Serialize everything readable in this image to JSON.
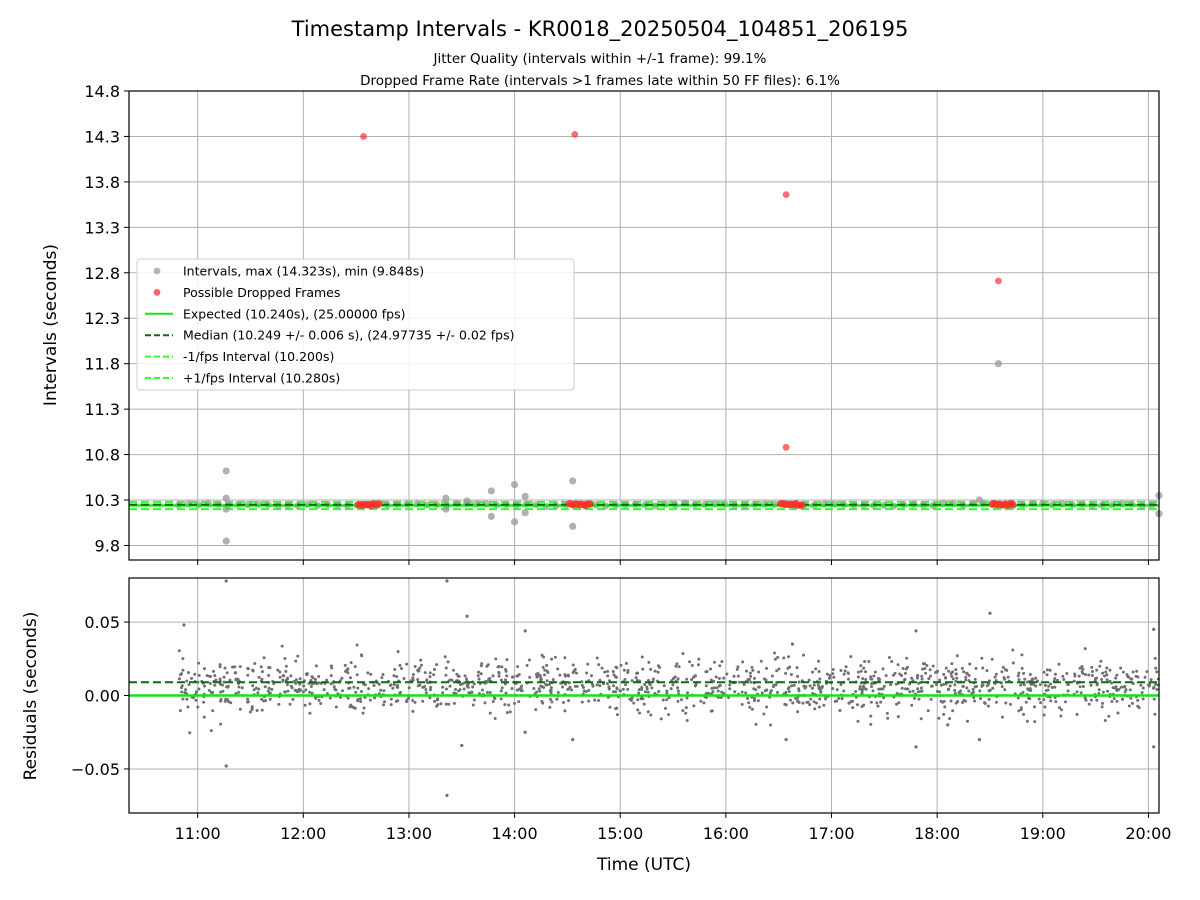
{
  "title": "Timestamp Intervals - KR0018_20250504_104851_206195",
  "subtitle_1": "Jitter Quality (intervals within +/-1 frame): 99.1%",
  "subtitle_2": "Dropped Frame Rate (intervals >1 frames late within 50 FF files): 6.1%",
  "colors": {
    "interval": "#9e9e9e",
    "dropped": "#ff3030",
    "expected": "#18e018",
    "median": "#0a6b0a",
    "fps_band": "#30ff30",
    "residual": "#707070",
    "grid": "#b0b0b0"
  },
  "chart_data": [
    {
      "type": "scatter",
      "panel": "top",
      "xlabel": "",
      "ylabel": "Intervals (seconds)",
      "x_unit": "hours UTC",
      "xlim": [
        10.35,
        20.1
      ],
      "ylim": [
        9.64,
        14.8
      ],
      "y_ticks": [
        "9.8",
        "10.3",
        "10.8",
        "11.3",
        "11.8",
        "12.3",
        "12.8",
        "13.3",
        "13.8",
        "14.3",
        "14.8"
      ],
      "grid": true,
      "legend_position": "center-left",
      "legend": [
        {
          "key": "intervals",
          "label": "Intervals, max (14.323s), min (9.848s)",
          "marker": "dot",
          "color": "#9e9e9e"
        },
        {
          "key": "dropped",
          "label": "Possible Dropped Frames",
          "marker": "dot",
          "color": "#ff3030"
        },
        {
          "key": "expected",
          "label": "Expected (10.240s), (25.00000 fps)",
          "marker": "solid",
          "color": "#18e018"
        },
        {
          "key": "median",
          "label": "Median (10.249 +/- 0.006 s), (24.97735 +/- 0.02 fps)",
          "marker": "dashed",
          "color": "#0a6b0a"
        },
        {
          "key": "minus",
          "label": "-1/fps Interval (10.200s)",
          "marker": "dashed",
          "color": "#30ff30"
        },
        {
          "key": "plus",
          "label": "+1/fps Interval (10.280s)",
          "marker": "dashed",
          "color": "#30ff30"
        }
      ],
      "lines": {
        "expected": 10.24,
        "median": 10.249,
        "minus": 10.2,
        "plus": 10.28
      },
      "band_points": {
        "start": 10.82,
        "end": 20.1,
        "step": 0.094,
        "y": 10.249
      },
      "outliers_gray": [
        [
          11.27,
          10.62
        ],
        [
          11.27,
          9.848
        ],
        [
          11.27,
          10.32
        ],
        [
          11.27,
          10.2
        ],
        [
          13.35,
          10.32
        ],
        [
          13.35,
          10.2
        ],
        [
          13.55,
          10.29
        ],
        [
          13.78,
          10.4
        ],
        [
          13.78,
          10.12
        ],
        [
          14.0,
          10.47
        ],
        [
          14.0,
          10.06
        ],
        [
          14.1,
          10.34
        ],
        [
          14.1,
          10.16
        ],
        [
          14.55,
          10.51
        ],
        [
          14.55,
          10.01
        ],
        [
          18.4,
          10.3
        ],
        [
          18.58,
          11.8
        ],
        [
          20.1,
          10.35
        ],
        [
          20.1,
          10.15
        ]
      ],
      "dropped_points": [
        [
          12.57,
          14.3
        ],
        [
          14.57,
          14.323
        ],
        [
          16.57,
          13.66
        ],
        [
          16.57,
          10.88
        ],
        [
          18.58,
          12.71
        ]
      ],
      "dropped_clusters": [
        [
          12.52,
          12.72
        ],
        [
          14.52,
          14.72
        ],
        [
          16.52,
          16.72
        ],
        [
          18.52,
          18.72
        ]
      ]
    },
    {
      "type": "scatter",
      "panel": "bottom",
      "xlabel": "Time (UTC)",
      "ylabel": "Residuals (seconds)",
      "x_unit": "hours UTC",
      "xlim": [
        10.35,
        20.1
      ],
      "ylim": [
        -0.08,
        0.08
      ],
      "x_ticks": [
        "11:00",
        "12:00",
        "13:00",
        "14:00",
        "15:00",
        "16:00",
        "17:00",
        "18:00",
        "19:00",
        "20:00"
      ],
      "y_ticks": [
        "0.05",
        "0.00",
        "−0.05"
      ],
      "grid": true,
      "lines": {
        "expected": 0.0,
        "median": 0.009
      },
      "residual_cloud": {
        "start": 10.82,
        "end": 20.1,
        "count": 1400,
        "center": 0.006,
        "spread": 0.009
      },
      "residual_outliers": [
        [
          10.87,
          0.048
        ],
        [
          11.27,
          0.078
        ],
        [
          11.27,
          -0.048
        ],
        [
          13.36,
          0.078
        ],
        [
          13.36,
          -0.068
        ],
        [
          13.55,
          0.054
        ],
        [
          13.5,
          -0.034
        ],
        [
          14.1,
          0.044
        ],
        [
          14.1,
          -0.025
        ],
        [
          14.55,
          -0.03
        ],
        [
          16.57,
          -0.03
        ],
        [
          16.63,
          0.035
        ],
        [
          17.8,
          0.044
        ],
        [
          17.8,
          -0.035
        ],
        [
          18.5,
          0.056
        ],
        [
          18.4,
          -0.03
        ],
        [
          18.1,
          -0.02
        ],
        [
          20.05,
          0.045
        ],
        [
          20.05,
          -0.035
        ]
      ]
    }
  ]
}
